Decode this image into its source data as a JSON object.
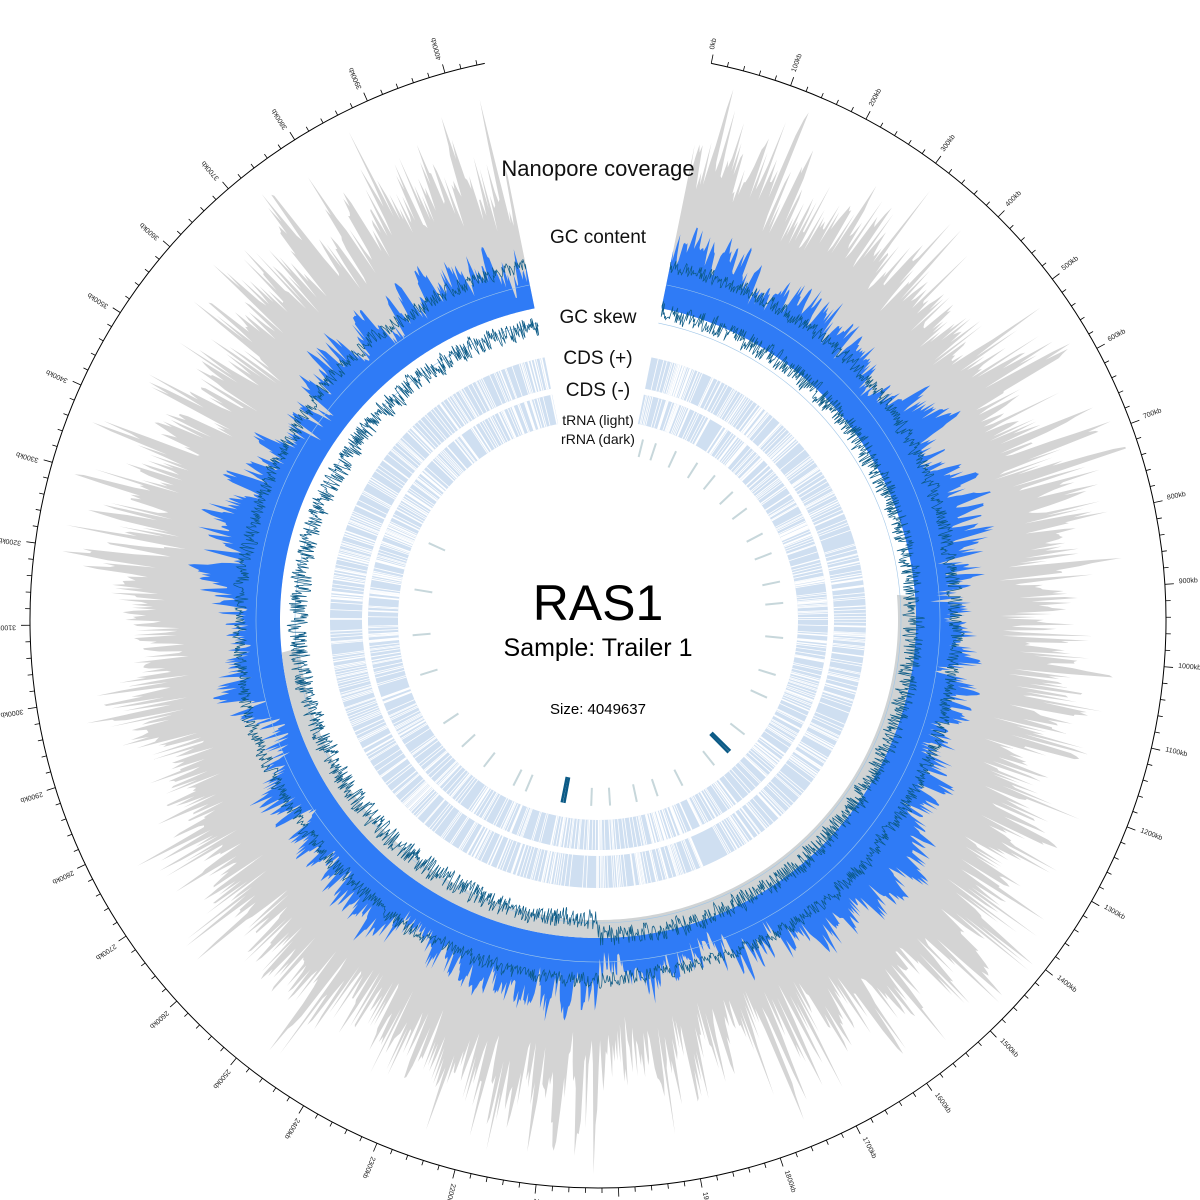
{
  "chart_data": {
    "type": "circular-genome-plot",
    "title": "RAS1",
    "subtitle": "Sample: Trailer 1",
    "size_label": "Size: 4049637",
    "genome_size": 4049637,
    "tick_step_kb": 100,
    "tick_labels_kb": [
      0,
      100,
      200,
      300,
      400,
      500,
      600,
      700,
      800,
      900,
      1000,
      1100,
      1200,
      1300,
      1400,
      1500,
      1600,
      1700,
      1800,
      1900,
      2000,
      2100,
      2200,
      2300,
      2400,
      2500,
      2600,
      2700,
      2800,
      2900,
      3000,
      3100,
      3200,
      3300,
      3400,
      3500,
      3600,
      3700,
      3800,
      3900,
      4000
    ],
    "tracks": [
      {
        "name": "Nanopore coverage",
        "kind": "area",
        "colors": {
          "fill": "#2f7bf6",
          "background": "#d4d4d4"
        }
      },
      {
        "name": "GC content",
        "kind": "line",
        "colors": {
          "line": "#0b5a86"
        }
      },
      {
        "name": "GC skew",
        "kind": "line",
        "colors": {
          "line": "#0b5a86",
          "reference": "#9fc6e8",
          "shade": "#d0d3d4"
        }
      },
      {
        "name": "CDS (+)",
        "kind": "features",
        "colors": {
          "bg": "#cfdff1",
          "feature": "#ffffff"
        }
      },
      {
        "name": "CDS (-)",
        "kind": "features",
        "colors": {
          "bg": "#cfdff1",
          "feature": "#ffffff"
        }
      },
      {
        "name": "tRNA (light)",
        "kind": "features",
        "colors": {
          "feature": "#c7d7db"
        }
      },
      {
        "name": "rRNA (dark)",
        "kind": "features",
        "colors": {
          "feature": "#0b5a86"
        }
      }
    ],
    "trna_positions_kb": [
      30,
      80,
      160,
      250,
      330,
      420,
      500,
      610,
      690,
      800,
      880,
      1010,
      1150,
      1240,
      1400,
      1560,
      1700,
      1800,
      1880,
      1980,
      2050,
      2150,
      2300,
      2350,
      2480,
      2590,
      2700,
      2900,
      3050,
      3220,
      3400
    ],
    "rrna_positions_kb": [
      1480,
      1490,
      2150,
      2160
    ]
  }
}
